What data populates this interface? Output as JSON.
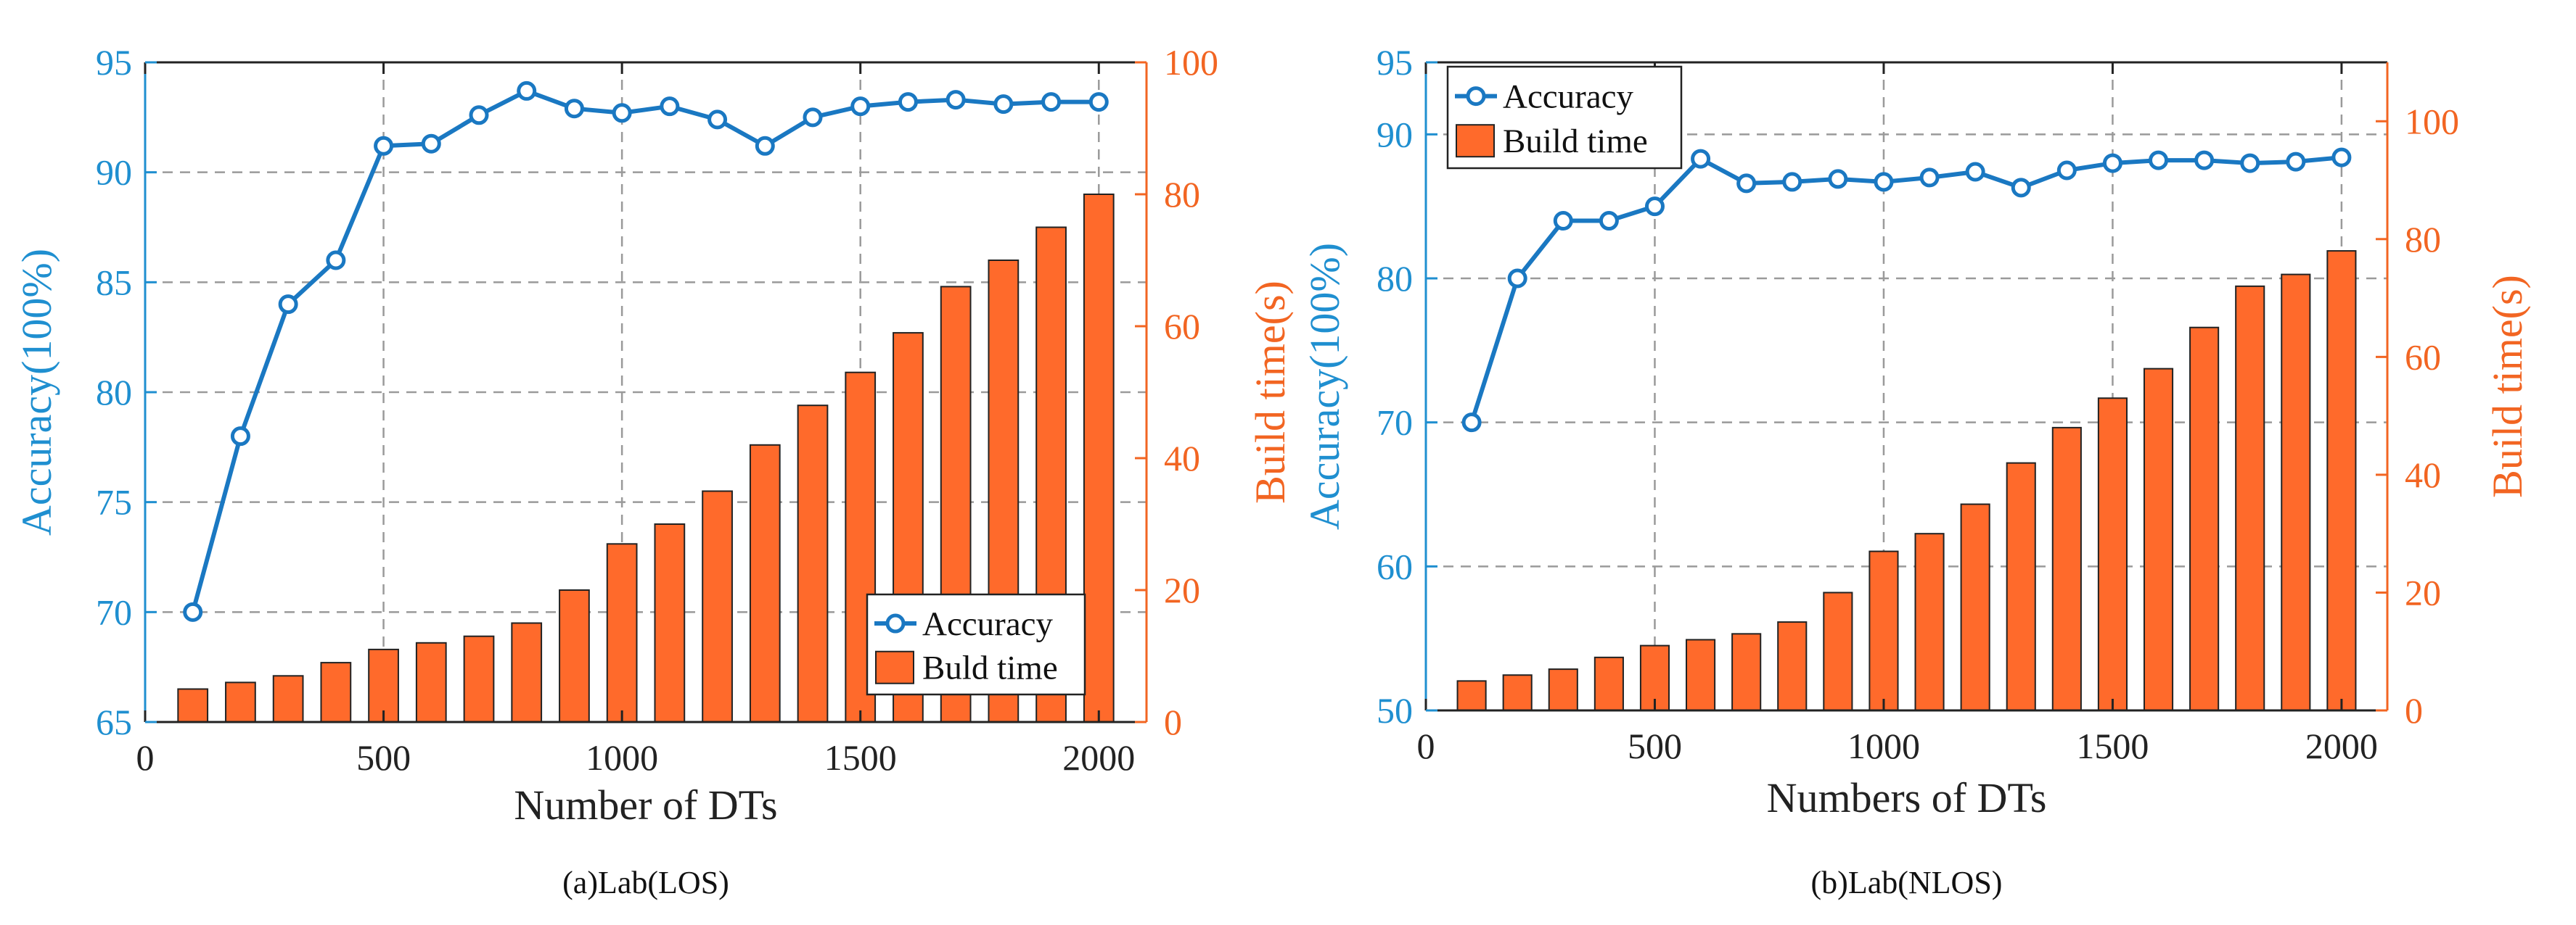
{
  "colors": {
    "accuracy": "#1a78c2",
    "accuracy_axis": "#1f8fd0",
    "build_bar": "#ff6a2b",
    "build_bar_edge": "#222222",
    "build_axis": "#f26522",
    "grid": "#9a9a9a"
  },
  "chart_data": [
    {
      "type": "bar+line",
      "caption": "(a)Lab(LOS)",
      "xlabel": "Number of DTs",
      "ylabel_left": "Accuracy(100%)",
      "ylabel_right": "Build time(s)",
      "xlim": [
        0,
        2100
      ],
      "ylim_left": [
        65,
        95
      ],
      "ylim_right": [
        0,
        100
      ],
      "xticks": [
        0,
        500,
        1000,
        1500,
        2000
      ],
      "yticks_left": [
        65,
        70,
        75,
        80,
        85,
        90,
        95
      ],
      "yticks_right": [
        0,
        20,
        40,
        60,
        80,
        100
      ],
      "legend": {
        "placement": "bottom-right",
        "entries": [
          "Accuracy",
          "Buld time"
        ]
      },
      "x": [
        100,
        200,
        300,
        400,
        500,
        600,
        700,
        800,
        900,
        1000,
        1100,
        1200,
        1300,
        1400,
        1500,
        1600,
        1700,
        1800,
        1900,
        2000
      ],
      "series": [
        {
          "name": "Accuracy",
          "kind": "line",
          "axis": "left",
          "values": [
            70.0,
            78.0,
            84.0,
            86.0,
            91.2,
            91.3,
            92.6,
            93.7,
            92.9,
            92.7,
            93.0,
            92.4,
            91.2,
            92.5,
            93.0,
            93.2,
            93.3,
            93.1,
            93.2,
            93.2
          ]
        },
        {
          "name": "Buld time",
          "kind": "bar",
          "axis": "right",
          "values": [
            5.0,
            6.0,
            7.0,
            9.0,
            11.0,
            12.0,
            13.0,
            15.0,
            20.0,
            27.0,
            30.0,
            35.0,
            42.0,
            48.0,
            53.0,
            59.0,
            66.0,
            70.0,
            75.0,
            80.0
          ]
        }
      ]
    },
    {
      "type": "bar+line",
      "caption": "(b)Lab(NLOS)",
      "xlabel": "Numbers of DTs",
      "ylabel_left": "Accuracy(100%)",
      "ylabel_right": "Build time(s)",
      "xlim": [
        0,
        2100
      ],
      "ylim_left": [
        50,
        95
      ],
      "ylim_right": [
        0,
        110
      ],
      "xticks": [
        0,
        500,
        1000,
        1500,
        2000
      ],
      "yticks_left": [
        50,
        60,
        70,
        80,
        90,
        95
      ],
      "yticks_right": [
        0,
        20,
        40,
        60,
        80,
        100
      ],
      "legend": {
        "placement": "top-left",
        "entries": [
          "Accuracy",
          "Build time"
        ]
      },
      "x": [
        100,
        200,
        300,
        400,
        500,
        600,
        700,
        800,
        900,
        1000,
        1100,
        1200,
        1300,
        1400,
        1500,
        1600,
        1700,
        1800,
        1900,
        2000
      ],
      "series": [
        {
          "name": "Accuracy",
          "kind": "line",
          "axis": "left",
          "values": [
            70.0,
            80.0,
            84.0,
            84.0,
            85.0,
            88.3,
            86.6,
            86.7,
            86.9,
            86.7,
            87.0,
            87.4,
            86.3,
            87.5,
            88.0,
            88.2,
            88.2,
            88.0,
            88.1,
            88.4
          ]
        },
        {
          "name": "Build time",
          "kind": "bar",
          "axis": "right",
          "values": [
            5.0,
            6.0,
            7.0,
            9.0,
            11.0,
            12.0,
            13.0,
            15.0,
            20.0,
            27.0,
            30.0,
            35.0,
            42.0,
            48.0,
            53.0,
            58.0,
            65.0,
            72.0,
            74.0,
            78.0
          ]
        }
      ]
    }
  ]
}
